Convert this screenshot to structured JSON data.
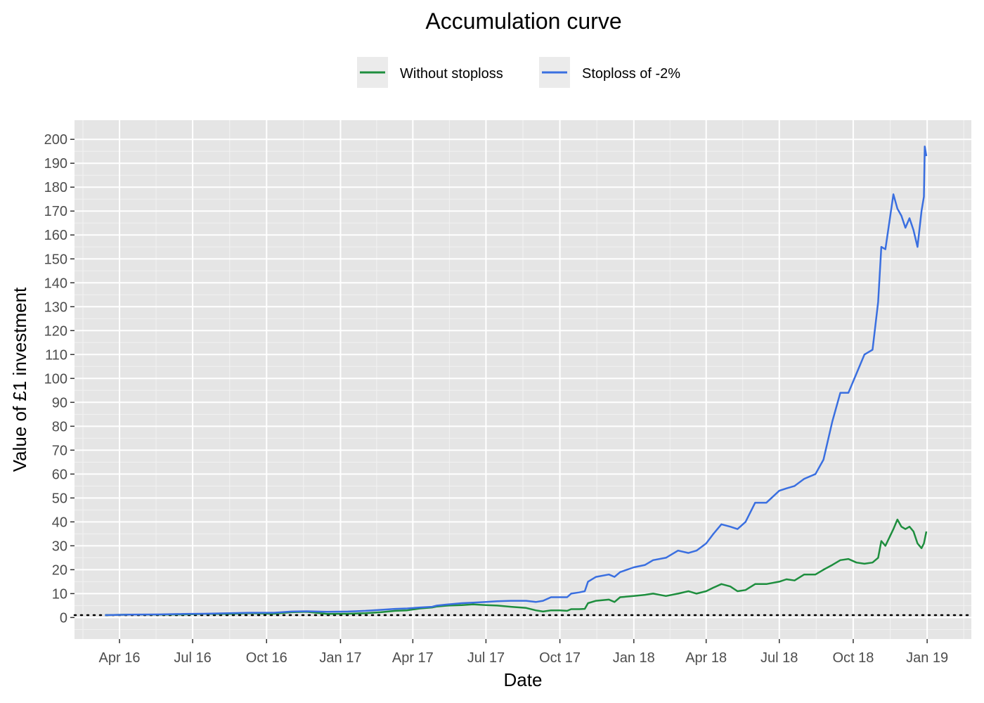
{
  "chart_data": {
    "type": "line",
    "title": "Accumulation curve",
    "xlabel": "Date",
    "ylabel": "Value of £1 investment",
    "x_axis": {
      "type": "date",
      "ticks": [
        {
          "date": "2016-04-01",
          "label": "Apr 16"
        },
        {
          "date": "2016-07-01",
          "label": "Jul 16"
        },
        {
          "date": "2016-10-01",
          "label": "Oct 16"
        },
        {
          "date": "2017-01-01",
          "label": "Jan 17"
        },
        {
          "date": "2017-04-01",
          "label": "Apr 17"
        },
        {
          "date": "2017-07-01",
          "label": "Jul 17"
        },
        {
          "date": "2017-10-01",
          "label": "Oct 17"
        },
        {
          "date": "2018-01-01",
          "label": "Jan 18"
        },
        {
          "date": "2018-04-01",
          "label": "Apr 18"
        },
        {
          "date": "2018-07-01",
          "label": "Jul 18"
        },
        {
          "date": "2018-10-01",
          "label": "Oct 18"
        },
        {
          "date": "2019-01-01",
          "label": "Jan 19"
        }
      ],
      "range": [
        "2016-02-05",
        "2019-02-25"
      ]
    },
    "y_axis": {
      "ticks": [
        0,
        10,
        20,
        30,
        40,
        50,
        60,
        70,
        80,
        90,
        100,
        110,
        120,
        130,
        140,
        150,
        160,
        170,
        180,
        190,
        200
      ],
      "range": [
        -9,
        208
      ]
    },
    "reference_line": {
      "y": 1,
      "style": "dotted",
      "color": "#000000"
    },
    "grid": true,
    "legend_position": "top",
    "panel_background": "#e5e5e5",
    "series": [
      {
        "name": "Without stoploss",
        "color": "#1e8e3e",
        "points": [
          [
            "2016-03-14",
            1.0
          ],
          [
            "2016-04-15",
            1.2
          ],
          [
            "2016-05-20",
            1.2
          ],
          [
            "2016-06-20",
            1.3
          ],
          [
            "2016-07-15",
            1.5
          ],
          [
            "2016-08-15",
            1.5
          ],
          [
            "2016-09-10",
            1.8
          ],
          [
            "2016-10-10",
            1.6
          ],
          [
            "2016-11-01",
            2.2
          ],
          [
            "2016-11-20",
            2.4
          ],
          [
            "2016-12-15",
            1.5
          ],
          [
            "2017-01-10",
            1.6
          ],
          [
            "2017-02-01",
            1.8
          ],
          [
            "2017-02-20",
            2.2
          ],
          [
            "2017-03-10",
            2.8
          ],
          [
            "2017-03-25",
            3.0
          ],
          [
            "2017-04-10",
            3.8
          ],
          [
            "2017-04-25",
            4.2
          ],
          [
            "2017-05-01",
            4.6
          ],
          [
            "2017-05-15",
            5.0
          ],
          [
            "2017-06-01",
            5.2
          ],
          [
            "2017-06-15",
            5.5
          ],
          [
            "2017-07-01",
            5.2
          ],
          [
            "2017-07-15",
            5.0
          ],
          [
            "2017-08-01",
            4.5
          ],
          [
            "2017-08-20",
            4.0
          ],
          [
            "2017-09-01",
            3.0
          ],
          [
            "2017-09-10",
            2.5
          ],
          [
            "2017-09-20",
            3.0
          ],
          [
            "2017-10-01",
            3.0
          ],
          [
            "2017-10-10",
            2.8
          ],
          [
            "2017-10-15",
            3.5
          ],
          [
            "2017-10-25",
            3.5
          ],
          [
            "2017-11-01",
            3.6
          ],
          [
            "2017-11-05",
            6.0
          ],
          [
            "2017-11-15",
            7.0
          ],
          [
            "2017-12-01",
            7.5
          ],
          [
            "2017-12-08",
            6.5
          ],
          [
            "2017-12-15",
            8.5
          ],
          [
            "2018-01-01",
            9.0
          ],
          [
            "2018-01-15",
            9.5
          ],
          [
            "2018-01-25",
            10.0
          ],
          [
            "2018-02-10",
            9.0
          ],
          [
            "2018-02-25",
            10.0
          ],
          [
            "2018-03-10",
            11.0
          ],
          [
            "2018-03-20",
            10.0
          ],
          [
            "2018-04-01",
            11.0
          ],
          [
            "2018-04-10",
            12.5
          ],
          [
            "2018-04-20",
            14.0
          ],
          [
            "2018-05-01",
            13.0
          ],
          [
            "2018-05-10",
            11.0
          ],
          [
            "2018-05-20",
            11.5
          ],
          [
            "2018-06-01",
            14.0
          ],
          [
            "2018-06-15",
            14.0
          ],
          [
            "2018-07-01",
            15.0
          ],
          [
            "2018-07-10",
            16.0
          ],
          [
            "2018-07-20",
            15.5
          ],
          [
            "2018-08-01",
            18.0
          ],
          [
            "2018-08-15",
            18.0
          ],
          [
            "2018-08-25",
            20.0
          ],
          [
            "2018-09-05",
            22.0
          ],
          [
            "2018-09-15",
            24.0
          ],
          [
            "2018-09-25",
            24.5
          ],
          [
            "2018-10-05",
            23.0
          ],
          [
            "2018-10-15",
            22.5
          ],
          [
            "2018-10-25",
            23.0
          ],
          [
            "2018-11-01",
            25.0
          ],
          [
            "2018-11-05",
            32.0
          ],
          [
            "2018-11-10",
            30.0
          ],
          [
            "2018-11-20",
            37.0
          ],
          [
            "2018-11-25",
            41.0
          ],
          [
            "2018-11-30",
            38.0
          ],
          [
            "2018-12-05",
            37.0
          ],
          [
            "2018-12-10",
            38.0
          ],
          [
            "2018-12-15",
            36.0
          ],
          [
            "2018-12-20",
            31.0
          ],
          [
            "2018-12-25",
            29.0
          ],
          [
            "2018-12-28",
            31.0
          ],
          [
            "2018-12-31",
            36.0
          ]
        ]
      },
      {
        "name": "Stoploss of -2%",
        "color": "#3a6fe0",
        "points": [
          [
            "2016-03-14",
            1.0
          ],
          [
            "2016-04-15",
            1.2
          ],
          [
            "2016-05-20",
            1.3
          ],
          [
            "2016-06-20",
            1.5
          ],
          [
            "2016-07-15",
            1.6
          ],
          [
            "2016-08-15",
            1.8
          ],
          [
            "2016-09-10",
            2.0
          ],
          [
            "2016-10-10",
            2.0
          ],
          [
            "2016-11-01",
            2.5
          ],
          [
            "2016-11-20",
            2.6
          ],
          [
            "2016-12-15",
            2.4
          ],
          [
            "2017-01-10",
            2.5
          ],
          [
            "2017-02-01",
            2.8
          ],
          [
            "2017-02-20",
            3.2
          ],
          [
            "2017-03-10",
            3.6
          ],
          [
            "2017-03-25",
            3.8
          ],
          [
            "2017-04-10",
            4.2
          ],
          [
            "2017-04-25",
            4.5
          ],
          [
            "2017-05-01",
            5.0
          ],
          [
            "2017-05-15",
            5.5
          ],
          [
            "2017-06-01",
            6.0
          ],
          [
            "2017-06-15",
            6.2
          ],
          [
            "2017-07-01",
            6.5
          ],
          [
            "2017-07-15",
            6.8
          ],
          [
            "2017-08-01",
            7.0
          ],
          [
            "2017-08-20",
            7.0
          ],
          [
            "2017-09-01",
            6.5
          ],
          [
            "2017-09-10",
            7.0
          ],
          [
            "2017-09-20",
            8.5
          ],
          [
            "2017-10-01",
            8.5
          ],
          [
            "2017-10-10",
            8.5
          ],
          [
            "2017-10-15",
            10.0
          ],
          [
            "2017-10-25",
            10.5
          ],
          [
            "2017-11-01",
            11.0
          ],
          [
            "2017-11-05",
            15.0
          ],
          [
            "2017-11-15",
            17.0
          ],
          [
            "2017-12-01",
            18.0
          ],
          [
            "2017-12-08",
            17.0
          ],
          [
            "2017-12-15",
            19.0
          ],
          [
            "2018-01-01",
            21.0
          ],
          [
            "2018-01-15",
            22.0
          ],
          [
            "2018-01-25",
            24.0
          ],
          [
            "2018-02-10",
            25.0
          ],
          [
            "2018-02-25",
            28.0
          ],
          [
            "2018-03-10",
            27.0
          ],
          [
            "2018-03-20",
            28.0
          ],
          [
            "2018-04-01",
            31.0
          ],
          [
            "2018-04-10",
            35.0
          ],
          [
            "2018-04-20",
            39.0
          ],
          [
            "2018-05-01",
            38.0
          ],
          [
            "2018-05-10",
            37.0
          ],
          [
            "2018-05-20",
            40.0
          ],
          [
            "2018-06-01",
            48.0
          ],
          [
            "2018-06-15",
            48.0
          ],
          [
            "2018-07-01",
            53.0
          ],
          [
            "2018-07-10",
            54.0
          ],
          [
            "2018-07-20",
            55.0
          ],
          [
            "2018-08-01",
            58.0
          ],
          [
            "2018-08-15",
            60.0
          ],
          [
            "2018-08-25",
            66.0
          ],
          [
            "2018-09-05",
            82.0
          ],
          [
            "2018-09-15",
            94.0
          ],
          [
            "2018-09-25",
            94.0
          ],
          [
            "2018-10-05",
            102.0
          ],
          [
            "2018-10-15",
            110.0
          ],
          [
            "2018-10-25",
            112.0
          ],
          [
            "2018-11-01",
            132.0
          ],
          [
            "2018-11-05",
            155.0
          ],
          [
            "2018-11-10",
            154.0
          ],
          [
            "2018-11-20",
            177.0
          ],
          [
            "2018-11-25",
            171.0
          ],
          [
            "2018-11-30",
            168.0
          ],
          [
            "2018-12-05",
            163.0
          ],
          [
            "2018-12-10",
            167.0
          ],
          [
            "2018-12-15",
            162.0
          ],
          [
            "2018-12-20",
            155.0
          ],
          [
            "2018-12-25",
            170.0
          ],
          [
            "2018-12-28",
            176.0
          ],
          [
            "2018-12-29",
            197.0
          ],
          [
            "2018-12-31",
            193.0
          ]
        ]
      }
    ]
  }
}
